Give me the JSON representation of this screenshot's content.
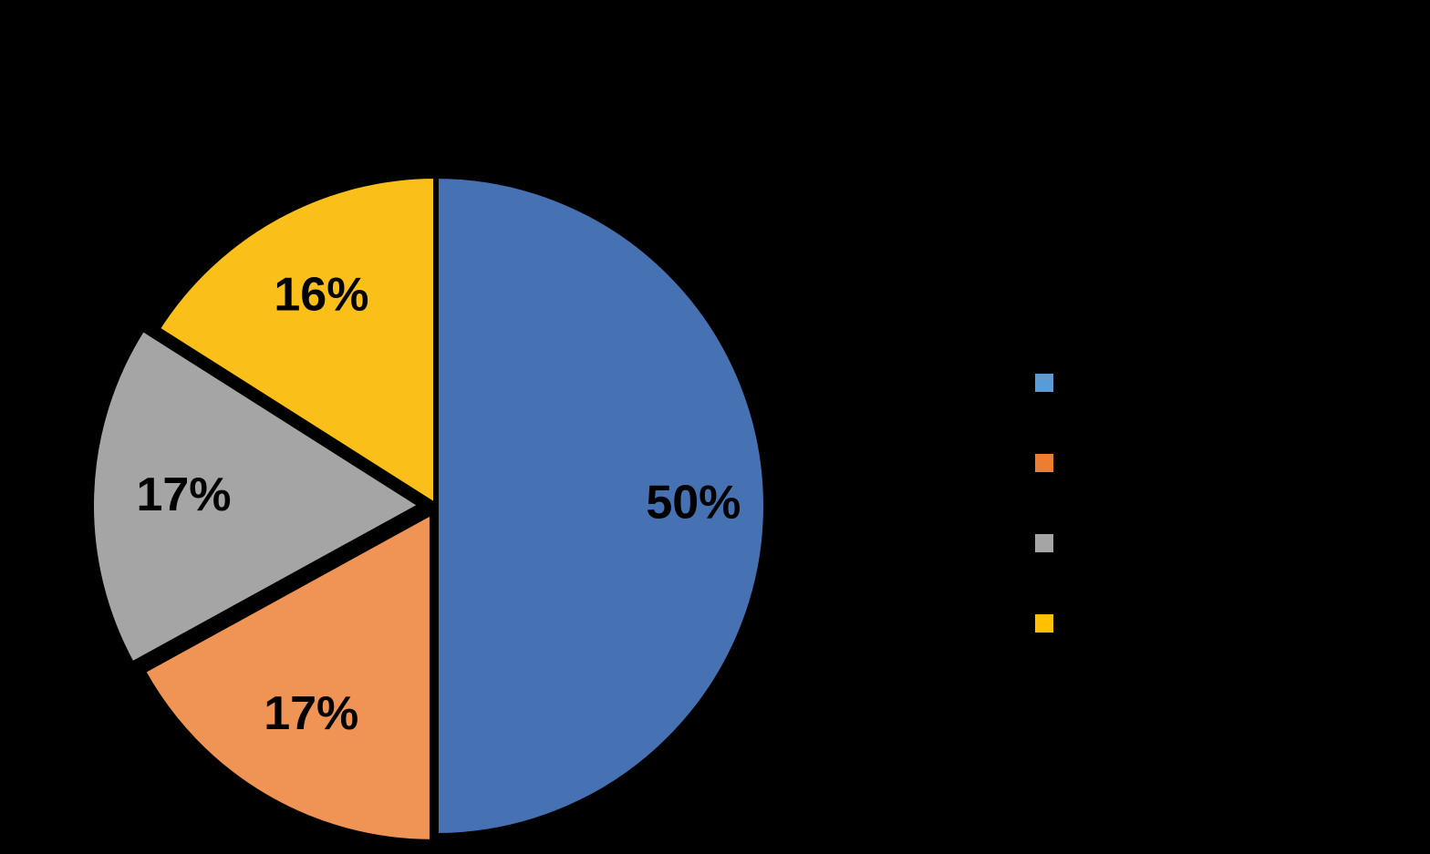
{
  "chart_data": {
    "type": "pie",
    "values": [
      50,
      17,
      17,
      16
    ],
    "value_labels": [
      "50%",
      "17%",
      "17%",
      "16%"
    ],
    "colors": [
      "#4672b4",
      "#f09456",
      "#a5a5a5",
      "#fbbf1a"
    ],
    "legend_colors": [
      "#5b9bd5",
      "#ed7d31",
      "#a5a5a5",
      "#ffc000"
    ],
    "legend": "right"
  }
}
